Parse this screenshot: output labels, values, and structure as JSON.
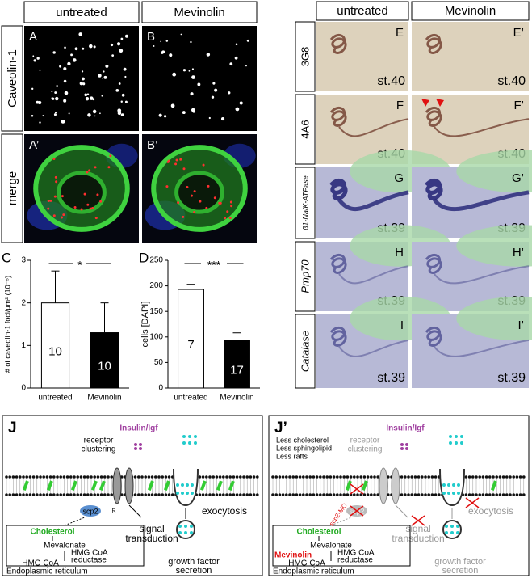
{
  "top_left": {
    "columns": [
      "untreated",
      "Mevinolin"
    ],
    "rows": [
      "Caveolin-1",
      "merge"
    ],
    "letters": [
      [
        "A",
        "B"
      ],
      [
        "A’",
        "B’"
      ]
    ]
  },
  "top_right": {
    "columns": [
      "untreated",
      "Mevinolin"
    ],
    "rows": [
      {
        "label": "3G8",
        "letters": [
          "E",
          "E’"
        ],
        "stages": [
          "st.40",
          "st.40"
        ]
      },
      {
        "label": "4A6",
        "letters": [
          "F",
          "F’"
        ],
        "stages": [
          "st.40",
          "st.40"
        ]
      },
      {
        "label": "β1-Na/K-ATPase",
        "letters": [
          "G",
          "G’"
        ],
        "stages": [
          "st.39",
          "st.39"
        ]
      },
      {
        "label": "Pmp70",
        "letters": [
          "H",
          "H’"
        ],
        "stages": [
          "st.39",
          "st.39"
        ]
      },
      {
        "label": "Catalase",
        "letters": [
          "I",
          "I’"
        ],
        "stages": [
          "st.39",
          "st.39"
        ]
      }
    ]
  },
  "chart_data": [
    {
      "type": "bar",
      "panel": "C",
      "ylabel": "# of caveolin-1 foci/μm² (10⁻⁵)",
      "categories": [
        "untreated",
        "Mevinolin"
      ],
      "values": [
        2.0,
        1.3
      ],
      "errors": [
        0.75,
        0.7
      ],
      "n_labels": [
        "10",
        "10"
      ],
      "colors": [
        "#ffffff",
        "#000000"
      ],
      "ylim": [
        0,
        3
      ],
      "yticks": [
        0,
        1,
        2,
        3
      ],
      "significance": "*"
    },
    {
      "type": "bar",
      "panel": "D",
      "ylabel": "cells [DAPI]",
      "categories": [
        "untreated",
        "Mevinolin"
      ],
      "values": [
        193,
        93
      ],
      "errors": [
        10,
        15
      ],
      "n_labels": [
        "7",
        "17"
      ],
      "colors": [
        "#ffffff",
        "#000000"
      ],
      "ylim": [
        0,
        250
      ],
      "yticks": [
        0,
        50,
        100,
        150,
        200,
        250
      ],
      "significance": "***"
    }
  ],
  "diagram_j": {
    "label": "J",
    "insulin_igf": "Insulin/Igf",
    "receptor_clustering": [
      "receptor",
      "clustering"
    ],
    "ir": "IR",
    "scp2": "scp2",
    "signal_transduction": [
      "signal",
      "transduction"
    ],
    "exocytosis": "exocytosis",
    "cholesterol": "Cholesterol",
    "mevalonate": "Mevalonate",
    "hmg_coa_reductase": [
      "HMG CoA",
      "reductase"
    ],
    "hmg_coa": "HMG CoA",
    "er": "Endoplasmic reticulum",
    "growth_factor_secretion": [
      "growth factor",
      "secretion"
    ]
  },
  "diagram_j2": {
    "label": "J’",
    "less": [
      "Less cholesterol",
      "Less sphingolipid",
      "Less rafts"
    ],
    "insulin_igf": "Insulin/Igf",
    "receptor_clustering": [
      "receptor",
      "clustering"
    ],
    "scp2": "scp2",
    "scp2_mo": "scp2-MO",
    "signal_transduction": [
      "signal",
      "transduction"
    ],
    "exocytosis": "exocytosis",
    "cholesterol": "Cholesterol",
    "mevalonate": "Mevalonate",
    "mevinolin": "Mevinolin",
    "hmg_coa_reductase": [
      "HMG CoA",
      "reductase"
    ],
    "hmg_coa": "HMG CoA",
    "er": "Endoplasmic reticulum",
    "growth_factor_secretion": [
      "growth factor",
      "secretion"
    ]
  }
}
